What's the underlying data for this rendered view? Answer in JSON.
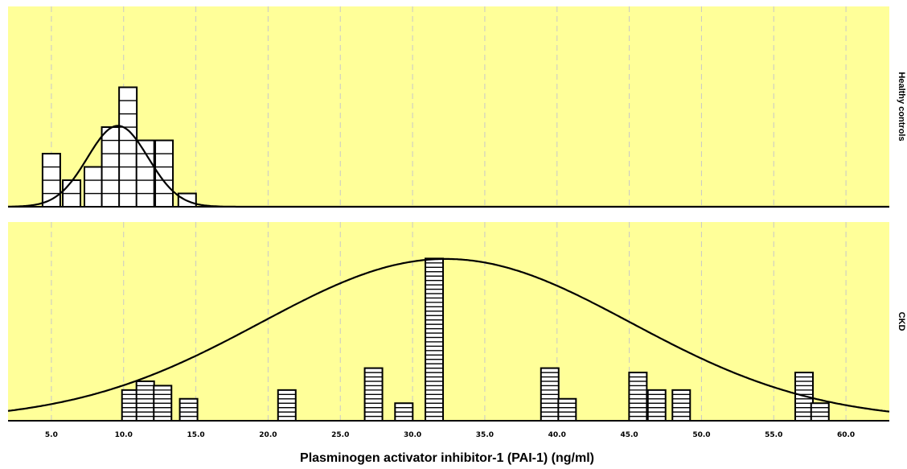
{
  "chart_data": {
    "type": "histogram",
    "xlabel": "Plasminogen activator inhibitor-1 (PAI-1) (ng/ml)",
    "xlim": [
      2,
      63
    ],
    "x_ticks": [
      "5.0",
      "10.0",
      "15.0",
      "20.0",
      "25.0",
      "30.0",
      "35.0",
      "40.0",
      "45.0",
      "50.0",
      "55.0",
      "60.0"
    ],
    "x_tick_values": [
      5,
      10,
      15,
      20,
      25,
      30,
      35,
      40,
      45,
      50,
      55,
      60
    ],
    "grid": "vertical dashed",
    "colors": {
      "panel_bg": "#ffff99",
      "grid": "#c8c8c8",
      "box_fill": "#ffffff",
      "stroke": "#000000"
    },
    "panels": [
      {
        "label": "Healthy controls",
        "box_height": 16.5,
        "boxes_per_column": 1,
        "bins": [
          {
            "x": 5.0,
            "count": 4
          },
          {
            "x": 6.4,
            "count": 2
          },
          {
            "x": 7.9,
            "count": 3
          },
          {
            "x": 9.1,
            "count": 6
          },
          {
            "x": 10.3,
            "count": 9
          },
          {
            "x": 11.5,
            "count": 5
          },
          {
            "x": 12.8,
            "count": 5
          },
          {
            "x": 14.4,
            "count": 1
          }
        ],
        "normal_curve": {
          "mean": 9.6,
          "sd": 2.1,
          "peak_count": 6.1
        }
      },
      {
        "label": "CKD",
        "box_height": 5.45,
        "boxes_per_column": 1,
        "bins": [
          {
            "x": 10.5,
            "count": 7
          },
          {
            "x": 11.5,
            "count": 9
          },
          {
            "x": 12.7,
            "count": 8
          },
          {
            "x": 14.5,
            "count": 5
          },
          {
            "x": 21.3,
            "count": 7
          },
          {
            "x": 27.3,
            "count": 12
          },
          {
            "x": 29.4,
            "count": 4
          },
          {
            "x": 31.5,
            "count": 37
          },
          {
            "x": 39.5,
            "count": 12
          },
          {
            "x": 40.7,
            "count": 5
          },
          {
            "x": 45.6,
            "count": 11
          },
          {
            "x": 46.9,
            "count": 7
          },
          {
            "x": 48.6,
            "count": 7
          },
          {
            "x": 57.1,
            "count": 11
          },
          {
            "x": 58.2,
            "count": 4
          }
        ],
        "normal_curve": {
          "mean": 32.3,
          "sd": 12.8,
          "peak_count": 36.9
        }
      }
    ]
  }
}
